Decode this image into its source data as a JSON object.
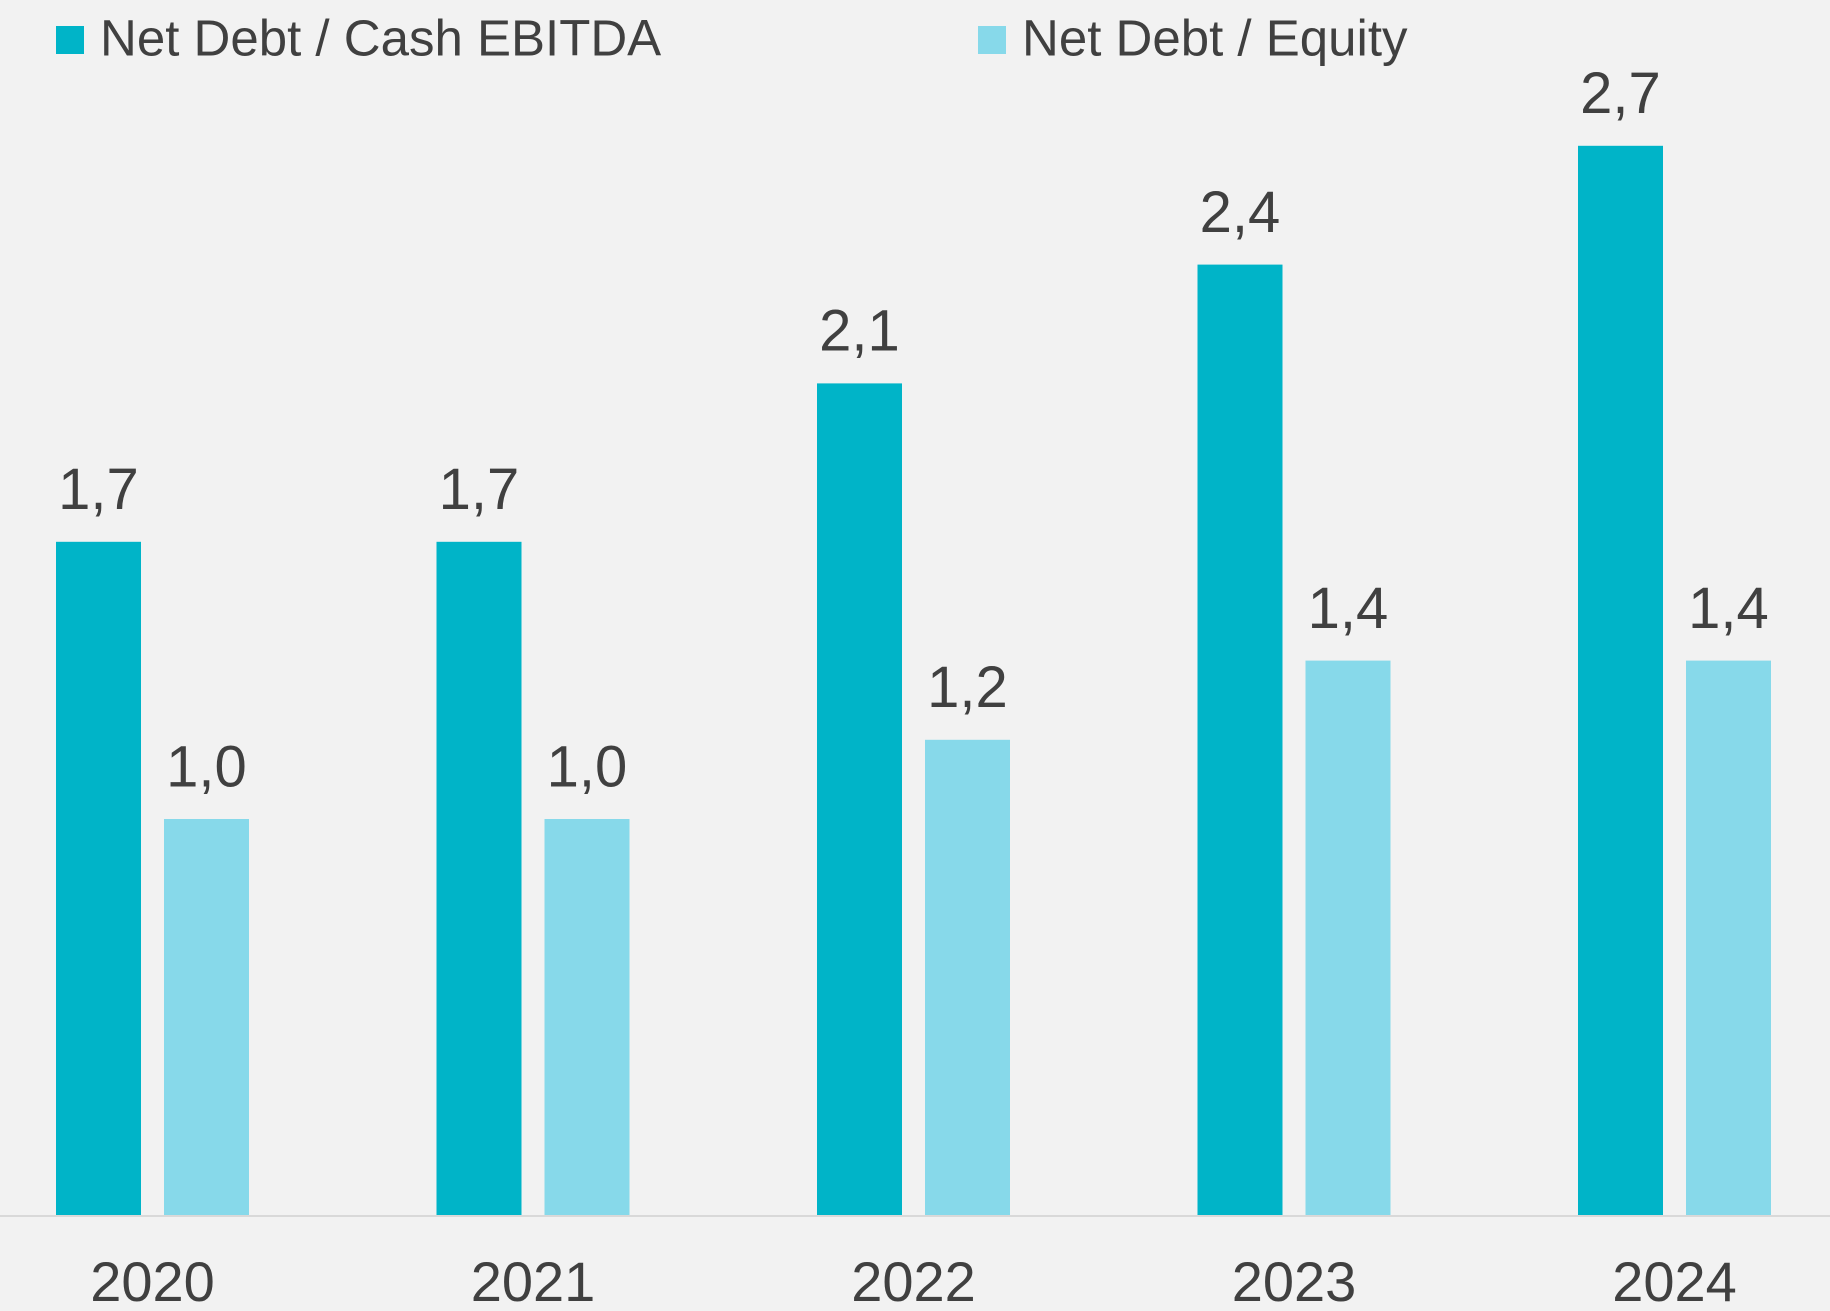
{
  "chart_data": {
    "type": "bar",
    "categories": [
      "2020",
      "2021",
      "2022",
      "2023",
      "2024"
    ],
    "series": [
      {
        "name": "Net Debt / Cash EBITDA",
        "color": "#00b4c8",
        "values": [
          1.7,
          1.7,
          2.1,
          2.4,
          2.7
        ],
        "value_labels": [
          "1,7",
          "1,7",
          "2,1",
          "2,4",
          "2,7"
        ]
      },
      {
        "name": "Net Debt / Equity",
        "color": "#87d9ea",
        "values": [
          1.0,
          1.0,
          1.2,
          1.4,
          1.4
        ],
        "value_labels": [
          "1,0",
          "1,0",
          "1,2",
          "1,4",
          "1,4"
        ]
      }
    ]
  }
}
